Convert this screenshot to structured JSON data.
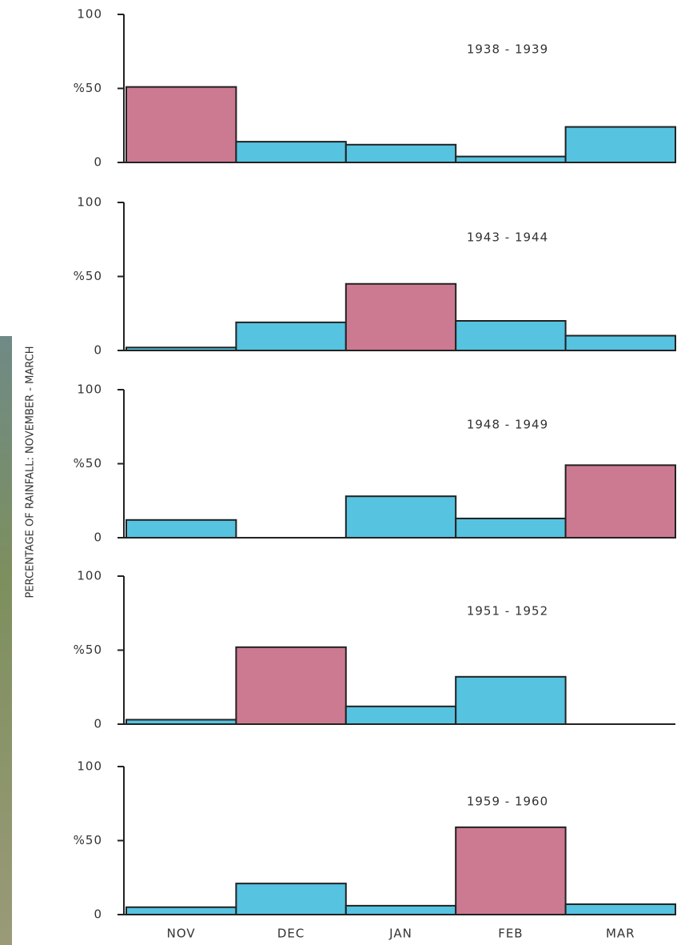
{
  "ylabel": "PERCENTAGE OF RAINFALL: NOVEMBER - MARCH",
  "categories": [
    "NOV",
    "DEC",
    "JAN",
    "FEB",
    "MAR"
  ],
  "chart_data": [
    {
      "type": "bar",
      "title": "1938 - 1939",
      "values": [
        51,
        14,
        12,
        4,
        24
      ],
      "colors": [
        "#cc7a92",
        "#56c3e0",
        "#56c3e0",
        "#56c3e0",
        "#56c3e0"
      ],
      "ylim": [
        0,
        100
      ],
      "yticks": [
        0,
        {
          "value": 50,
          "label": "%50"
        },
        100
      ]
    },
    {
      "type": "bar",
      "title": "1943 - 1944",
      "values": [
        2,
        19,
        45,
        20,
        10
      ],
      "colors": [
        "#56c3e0",
        "#56c3e0",
        "#cc7a92",
        "#56c3e0",
        "#56c3e0"
      ],
      "ylim": [
        0,
        100
      ],
      "yticks": [
        0,
        {
          "value": 50,
          "label": "%50"
        },
        100
      ]
    },
    {
      "type": "bar",
      "title": "1948 - 1949",
      "values": [
        12,
        0,
        28,
        13,
        49
      ],
      "colors": [
        "#56c3e0",
        "#56c3e0",
        "#56c3e0",
        "#56c3e0",
        "#cc7a92"
      ],
      "ylim": [
        0,
        100
      ],
      "yticks": [
        0,
        {
          "value": 50,
          "label": "%50"
        },
        100
      ]
    },
    {
      "type": "bar",
      "title": "1951 - 1952",
      "values": [
        3,
        52,
        12,
        32,
        0
      ],
      "colors": [
        "#56c3e0",
        "#cc7a92",
        "#56c3e0",
        "#56c3e0",
        "#56c3e0"
      ],
      "ylim": [
        0,
        100
      ],
      "yticks": [
        0,
        {
          "value": 50,
          "label": "%50"
        },
        100
      ]
    },
    {
      "type": "bar",
      "title": "1959 - 1960",
      "values": [
        5,
        21,
        6,
        59,
        7
      ],
      "colors": [
        "#56c3e0",
        "#56c3e0",
        "#56c3e0",
        "#cc7a92",
        "#56c3e0"
      ],
      "ylim": [
        0,
        100
      ],
      "yticks": [
        0,
        {
          "value": 50,
          "label": "%50"
        },
        100
      ]
    }
  ]
}
